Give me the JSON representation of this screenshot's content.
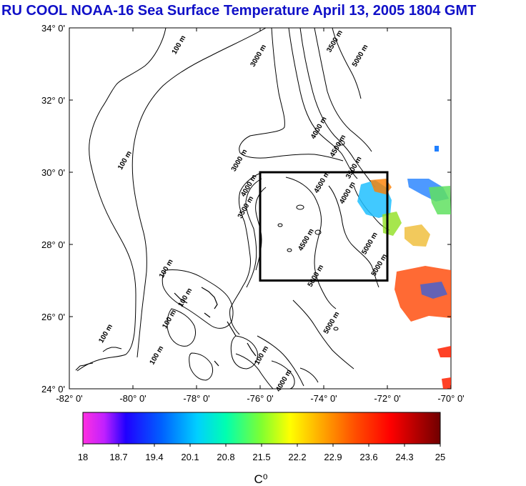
{
  "title": "RU COOL  NOAA-16 Sea Surface Temperature April 13, 2005 1804 GMT",
  "map": {
    "lon_ticks": [
      "-82° 0'",
      "-80° 0'",
      "-78° 0'",
      "-76° 0'",
      "-74° 0'",
      "-72° 0'",
      "-70° 0'"
    ],
    "lat_ticks": [
      "34° 0'",
      "32° 0'",
      "30° 0'",
      "28° 0'",
      "26° 0'",
      "24° 0'"
    ],
    "lon_range": [
      -82,
      -70
    ],
    "lat_range": [
      24,
      34
    ],
    "study_box": {
      "lon": [
        -76,
        -72
      ],
      "lat": [
        27,
        30
      ]
    },
    "contour_labels": [
      {
        "text": "100 m",
        "lon": -78.5,
        "lat": 33.5
      },
      {
        "text": "3000 m",
        "lon": -76.0,
        "lat": 33.2
      },
      {
        "text": "3500 m",
        "lon": -73.6,
        "lat": 33.6
      },
      {
        "text": "5000 m",
        "lon": -72.8,
        "lat": 33.2
      },
      {
        "text": "100 m",
        "lon": -80.2,
        "lat": 30.3
      },
      {
        "text": "3000 m",
        "lon": -76.6,
        "lat": 30.3
      },
      {
        "text": "4000 m",
        "lon": -74.1,
        "lat": 31.2
      },
      {
        "text": "4500 m",
        "lon": -73.5,
        "lat": 30.7
      },
      {
        "text": "3500 m",
        "lon": -73.0,
        "lat": 30.1
      },
      {
        "text": "4500 m",
        "lon": -74.0,
        "lat": 29.7
      },
      {
        "text": "4000 m",
        "lon": -73.2,
        "lat": 29.4
      },
      {
        "text": "4000 m",
        "lon": -76.3,
        "lat": 29.6
      },
      {
        "text": "3500 m",
        "lon": -76.4,
        "lat": 29.0
      },
      {
        "text": "4500 m",
        "lon": -74.5,
        "lat": 28.1
      },
      {
        "text": "5000 m",
        "lon": -74.2,
        "lat": 27.1
      },
      {
        "text": "5000 m",
        "lon": -72.5,
        "lat": 28.0
      },
      {
        "text": "5000 m",
        "lon": -72.2,
        "lat": 27.4
      },
      {
        "text": "100 m",
        "lon": -78.9,
        "lat": 27.3
      },
      {
        "text": "100 m",
        "lon": -78.3,
        "lat": 26.5
      },
      {
        "text": "100 m",
        "lon": -78.8,
        "lat": 25.9
      },
      {
        "text": "100 m",
        "lon": -80.8,
        "lat": 25.5
      },
      {
        "text": "100 m",
        "lon": -79.2,
        "lat": 24.9
      },
      {
        "text": "5000 m",
        "lon": -73.7,
        "lat": 25.8
      },
      {
        "text": "100 m",
        "lon": -75.9,
        "lat": 24.9
      },
      {
        "text": "4000 m",
        "lon": -75.2,
        "lat": 24.2
      }
    ]
  },
  "colorbar": {
    "ticks": [
      "18",
      "18.7",
      "19.4",
      "20.1",
      "20.8",
      "21.5",
      "22.2",
      "22.9",
      "23.6",
      "24.3",
      "25"
    ],
    "range": [
      18,
      25
    ],
    "units": "C⁰"
  }
}
